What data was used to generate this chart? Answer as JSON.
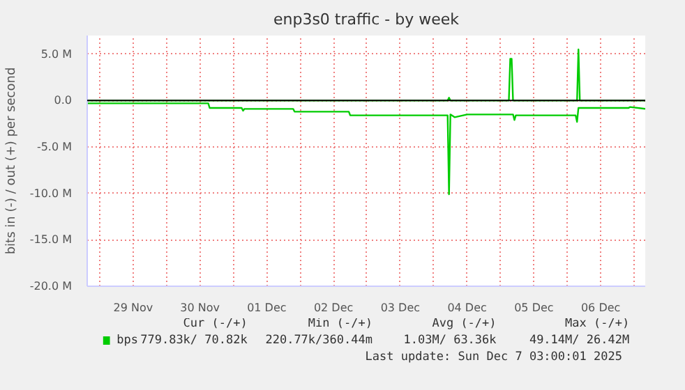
{
  "chart_data": {
    "type": "line",
    "title": "enp3s0 traffic - by week",
    "ylabel": "bits in (-) / out (+) per second",
    "xlim": [
      "2025-11-28T19:30",
      "2025-12-07T04:00"
    ],
    "xticks": [
      {
        "value": "2025-11-29T00:00",
        "label": null
      },
      {
        "value": "2025-11-29T12:00",
        "label": "29 Nov"
      },
      {
        "value": "2025-11-30T00:00",
        "label": null
      },
      {
        "value": "2025-11-30T12:00",
        "label": "30 Nov"
      },
      {
        "value": "2025-12-01T00:00",
        "label": null
      },
      {
        "value": "2025-12-01T12:00",
        "label": "01 Dec"
      },
      {
        "value": "2025-12-02T00:00",
        "label": null
      },
      {
        "value": "2025-12-02T12:00",
        "label": "02 Dec"
      },
      {
        "value": "2025-12-03T00:00",
        "label": null
      },
      {
        "value": "2025-12-03T12:00",
        "label": "03 Dec"
      },
      {
        "value": "2025-12-04T00:00",
        "label": null
      },
      {
        "value": "2025-12-04T12:00",
        "label": "04 Dec"
      },
      {
        "value": "2025-12-05T00:00",
        "label": null
      },
      {
        "value": "2025-12-05T12:00",
        "label": "05 Dec"
      },
      {
        "value": "2025-12-06T00:00",
        "label": null
      },
      {
        "value": "2025-12-06T12:00",
        "label": "06 Dec"
      },
      {
        "value": "2025-12-07T00:00",
        "label": null
      }
    ],
    "ylim": [
      -20,
      7
    ],
    "yticks": [
      {
        "value": -20,
        "label": "-20.0 M"
      },
      {
        "value": -15,
        "label": "-15.0 M"
      },
      {
        "value": -10,
        "label": "-10.0 M"
      },
      {
        "value": -5,
        "label": "-5.0 M"
      },
      {
        "value": 0,
        "label": "0.0"
      },
      {
        "value": 5,
        "label": "5.0 M"
      }
    ],
    "grid": true,
    "legend": "bottom",
    "line_style": "solid",
    "marker": "none",
    "ref_lines": [
      {
        "axis": "y",
        "value": 0,
        "label": null,
        "color": "#000000"
      }
    ],
    "series": [
      {
        "name": "bps",
        "color": "#00cc00",
        "x": [
          "2025-11-28T19:30",
          "2025-11-30T15:00",
          "2025-11-30T15:30",
          "2025-12-01T03:00",
          "2025-12-01T03:30",
          "2025-12-01T04:00",
          "2025-12-01T21:30",
          "2025-12-01T22:00",
          "2025-12-02T17:30",
          "2025-12-02T18:00",
          "2025-12-04T05:00",
          "2025-12-04T05:30",
          "2025-12-04T06:00",
          "2025-12-04T07:30",
          "2025-12-04T12:00",
          "2025-12-05T04:30",
          "2025-12-05T05:00",
          "2025-12-05T05:30",
          "2025-12-06T03:00",
          "2025-12-06T03:30",
          "2025-12-06T04:00",
          "2025-12-06T22:00",
          "2025-12-06T22:30",
          "2025-12-07T04:00"
        ],
        "values": [
          -0.3,
          -0.3,
          -0.8,
          -0.8,
          -1.1,
          -0.9,
          -0.9,
          -1.2,
          -1.2,
          -1.6,
          -1.6,
          -10.1,
          -1.5,
          -1.8,
          -1.5,
          -1.5,
          -2.1,
          -1.6,
          -1.6,
          -2.3,
          -0.8,
          -0.8,
          -0.7,
          -0.9
        ]
      },
      {
        "color": "#00cc00",
        "x": [
          "2025-11-28T19:30",
          "2025-12-04T05:00",
          "2025-12-04T05:30",
          "2025-12-04T06:00",
          "2025-12-05T03:00",
          "2025-12-05T03:30",
          "2025-12-05T04:00",
          "2025-12-05T04:30",
          "2025-12-06T03:30",
          "2025-12-06T04:00",
          "2025-12-06T04:30",
          "2025-12-07T04:00"
        ],
        "values": [
          0,
          0,
          0.3,
          0,
          0,
          4.5,
          4.5,
          0,
          0,
          5.5,
          0,
          0
        ]
      }
    ],
    "annotations": [
      "Cur (-/+)",
      "Min (-/+)",
      "Avg (-/+)",
      "Max (-/+)",
      "779.83k/ 70.82k",
      "220.77k/360.44m",
      "1.03M/ 63.36k",
      "49.14M/ 26.42M",
      "Last update: Sun Dec  7 03:00:01 2025"
    ]
  }
}
